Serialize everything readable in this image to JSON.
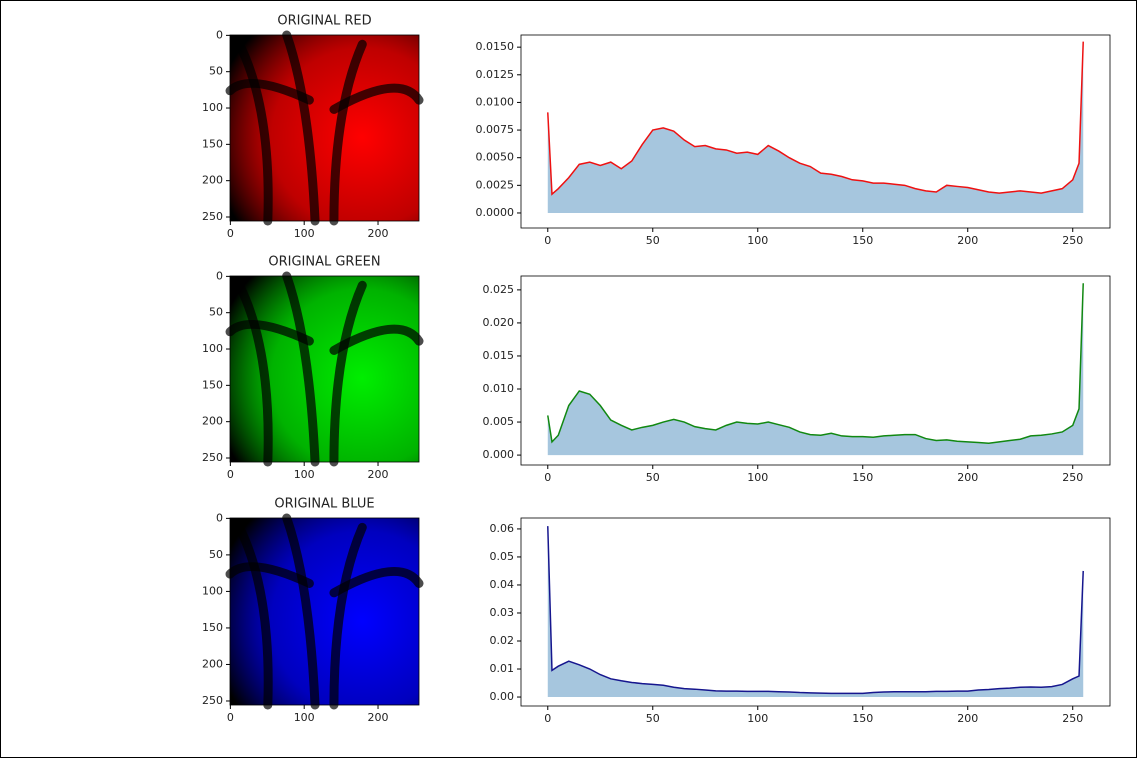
{
  "chart_data": [
    {
      "type": "image",
      "title": "ORIGINAL RED",
      "color": "#ff0000",
      "xlim": [
        -0.5,
        255.5
      ],
      "ylim": [
        255.5,
        -0.5
      ],
      "xticks": [
        0,
        100,
        200
      ],
      "yticks": [
        0,
        50,
        100,
        150,
        200,
        250
      ]
    },
    {
      "type": "line",
      "xlim": [
        -12.75,
        267.75
      ],
      "ylim": [
        -0.00136,
        0.0161
      ],
      "xticks": [
        0,
        50,
        100,
        150,
        200,
        250
      ],
      "yticks": [
        {
          "value": 0,
          "label": "0.0000"
        },
        {
          "value": 0.0025,
          "label": "0.0025"
        },
        {
          "value": 0.005,
          "label": "0.0050"
        },
        {
          "value": 0.0075,
          "label": "0.0075"
        },
        {
          "value": 0.01,
          "label": "0.0100"
        },
        {
          "value": 0.0125,
          "label": "0.0125"
        },
        {
          "value": 0.015,
          "label": "0.0150"
        }
      ],
      "fill_color": "#a6c6de",
      "x": [
        0,
        2,
        5,
        10,
        15,
        20,
        25,
        30,
        35,
        40,
        45,
        50,
        55,
        60,
        65,
        70,
        75,
        80,
        85,
        90,
        95,
        100,
        105,
        110,
        115,
        120,
        125,
        130,
        135,
        140,
        145,
        150,
        155,
        160,
        165,
        170,
        175,
        180,
        185,
        190,
        195,
        200,
        205,
        210,
        215,
        220,
        225,
        230,
        235,
        240,
        245,
        250,
        253,
        255
      ],
      "series": [
        {
          "color": "#ee1111",
          "values": [
            0.0091,
            0.0017,
            0.0022,
            0.0032,
            0.0044,
            0.0046,
            0.0043,
            0.0046,
            0.004,
            0.0047,
            0.0062,
            0.0075,
            0.0077,
            0.0074,
            0.0066,
            0.006,
            0.0061,
            0.0058,
            0.0057,
            0.0054,
            0.0055,
            0.0053,
            0.0061,
            0.0056,
            0.005,
            0.0045,
            0.0042,
            0.0036,
            0.0035,
            0.0033,
            0.003,
            0.0029,
            0.0027,
            0.0027,
            0.0026,
            0.0025,
            0.0022,
            0.002,
            0.0019,
            0.0025,
            0.0024,
            0.0023,
            0.0021,
            0.0019,
            0.0018,
            0.0019,
            0.002,
            0.0019,
            0.0018,
            0.002,
            0.0022,
            0.003,
            0.0045,
            0.0155
          ]
        }
      ]
    },
    {
      "type": "image",
      "title": "ORIGINAL GREEN",
      "color": "#00ee00",
      "xlim": [
        -0.5,
        255.5
      ],
      "ylim": [
        255.5,
        -0.5
      ],
      "xticks": [
        0,
        100,
        200
      ],
      "yticks": [
        0,
        50,
        100,
        150,
        200,
        250
      ]
    },
    {
      "type": "line",
      "xlim": [
        -12.75,
        267.75
      ],
      "ylim": [
        -0.0015,
        0.0271
      ],
      "xticks": [
        0,
        50,
        100,
        150,
        200,
        250
      ],
      "yticks": [
        {
          "value": 0,
          "label": "0.000"
        },
        {
          "value": 0.005,
          "label": "0.005"
        },
        {
          "value": 0.01,
          "label": "0.010"
        },
        {
          "value": 0.015,
          "label": "0.015"
        },
        {
          "value": 0.02,
          "label": "0.020"
        },
        {
          "value": 0.025,
          "label": "0.025"
        }
      ],
      "fill_color": "#a6c6de",
      "x": [
        0,
        2,
        5,
        10,
        15,
        20,
        25,
        30,
        35,
        40,
        45,
        50,
        55,
        60,
        65,
        70,
        75,
        80,
        85,
        90,
        95,
        100,
        105,
        110,
        115,
        120,
        125,
        130,
        135,
        140,
        145,
        150,
        155,
        160,
        165,
        170,
        175,
        180,
        185,
        190,
        195,
        200,
        205,
        210,
        215,
        220,
        225,
        230,
        235,
        240,
        245,
        250,
        253,
        255
      ],
      "series": [
        {
          "color": "#118811",
          "values": [
            0.006,
            0.002,
            0.003,
            0.0075,
            0.0097,
            0.0092,
            0.0075,
            0.0053,
            0.0045,
            0.0038,
            0.0042,
            0.0045,
            0.005,
            0.0054,
            0.005,
            0.0043,
            0.004,
            0.0038,
            0.0045,
            0.005,
            0.0048,
            0.0047,
            0.005,
            0.0046,
            0.0042,
            0.0035,
            0.0031,
            0.003,
            0.0033,
            0.0029,
            0.0028,
            0.0028,
            0.0027,
            0.0029,
            0.003,
            0.0031,
            0.0031,
            0.0025,
            0.0022,
            0.0023,
            0.0021,
            0.002,
            0.0019,
            0.0018,
            0.002,
            0.0022,
            0.0024,
            0.0029,
            0.003,
            0.0032,
            0.0035,
            0.0045,
            0.007,
            0.026
          ]
        }
      ]
    },
    {
      "type": "image",
      "title": "ORIGINAL BLUE",
      "color": "#0000ff",
      "xlim": [
        -0.5,
        255.5
      ],
      "ylim": [
        255.5,
        -0.5
      ],
      "xticks": [
        0,
        100,
        200
      ],
      "yticks": [
        0,
        50,
        100,
        150,
        200,
        250
      ]
    },
    {
      "type": "line",
      "xlim": [
        -12.75,
        267.75
      ],
      "ylim": [
        -0.0032,
        0.0639
      ],
      "xticks": [
        0,
        50,
        100,
        150,
        200,
        250
      ],
      "yticks": [
        {
          "value": 0,
          "label": "0.00"
        },
        {
          "value": 0.01,
          "label": "0.01"
        },
        {
          "value": 0.02,
          "label": "0.02"
        },
        {
          "value": 0.03,
          "label": "0.03"
        },
        {
          "value": 0.04,
          "label": "0.04"
        },
        {
          "value": 0.05,
          "label": "0.05"
        },
        {
          "value": 0.06,
          "label": "0.06"
        }
      ],
      "fill_color": "#a6c6de",
      "x": [
        0,
        2,
        5,
        10,
        15,
        20,
        25,
        30,
        35,
        40,
        45,
        50,
        55,
        60,
        65,
        70,
        75,
        80,
        85,
        90,
        95,
        100,
        105,
        110,
        115,
        120,
        125,
        130,
        135,
        140,
        145,
        150,
        155,
        160,
        165,
        170,
        175,
        180,
        185,
        190,
        195,
        200,
        205,
        210,
        215,
        220,
        225,
        230,
        235,
        240,
        245,
        250,
        253,
        255
      ],
      "series": [
        {
          "color": "#16168e",
          "values": [
            0.061,
            0.0095,
            0.011,
            0.0128,
            0.0115,
            0.01,
            0.008,
            0.0065,
            0.0058,
            0.0052,
            0.0048,
            0.0045,
            0.0042,
            0.0035,
            0.003,
            0.0028,
            0.0025,
            0.0022,
            0.0021,
            0.0021,
            0.002,
            0.002,
            0.002,
            0.0019,
            0.0018,
            0.0016,
            0.0015,
            0.0014,
            0.0013,
            0.0013,
            0.0013,
            0.0013,
            0.0016,
            0.0018,
            0.0019,
            0.0019,
            0.0019,
            0.0019,
            0.002,
            0.002,
            0.0021,
            0.0021,
            0.0025,
            0.0027,
            0.003,
            0.0032,
            0.0035,
            0.0036,
            0.0035,
            0.0037,
            0.0045,
            0.0065,
            0.0075,
            0.045
          ]
        }
      ]
    }
  ]
}
